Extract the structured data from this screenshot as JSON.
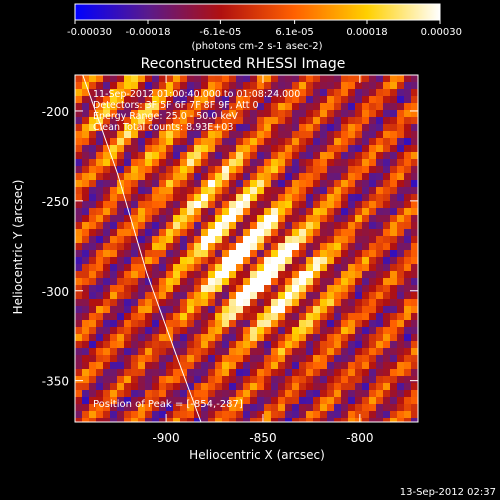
{
  "chart_data": {
    "type": "heatmap",
    "title": "Reconstructed RHESSI Image",
    "xlabel": "Heliocentric X (arcsec)",
    "ylabel": "Heliocentric Y (arcsec)",
    "xlim": [
      -947,
      -770
    ],
    "ylim": [
      -373,
      -180
    ],
    "xticks": [
      -900,
      -850,
      -800
    ],
    "xtick_labels": [
      "-900",
      "-850",
      "-800"
    ],
    "yticks": [
      -200,
      -250,
      -300,
      -350
    ],
    "ytick_labels": [
      "-200",
      "-250",
      "-300",
      "-350"
    ],
    "colorbar": {
      "range": [
        -0.0003,
        0.0003
      ],
      "ticks": [
        -0.0003,
        -0.00018,
        -6.1e-05,
        6.1e-05,
        0.00018,
        0.0003
      ],
      "tick_labels": [
        "-0.00030",
        "-0.00018",
        "-6.1e-05",
        "6.1e-05",
        "0.00018",
        "0.00030"
      ],
      "units_text": "(photons cm-2 s-1 asec-2)",
      "colors": [
        "#0000ff",
        "#5a1a8c",
        "#b01010",
        "#ff6000",
        "#ffd000",
        "#ffffff"
      ]
    },
    "annotations": [
      "11-Sep-2012 01:00:40.000 to 01:08:24.000",
      "Detectors: 3F 5F 6F 7F 8F 9F, Att 0",
      "Energy Range: 25.0 - 50.0 keV",
      "Clean     Total counts: 8.93E+03"
    ],
    "peak_label": "Position of Peak = [-854,-287]",
    "peak_position": [
      -854,
      -287
    ],
    "limb_curve": [
      [
        -943,
        -180
      ],
      [
        -925,
        -235
      ],
      [
        -910,
        -290
      ],
      [
        -895,
        -335
      ],
      [
        -882,
        -373
      ]
    ],
    "hotspots": [
      {
        "x": -862,
        "y": -285,
        "amplitude": 1.0
      },
      {
        "x": -838,
        "y": -290,
        "amplitude": 0.85
      },
      {
        "x": -875,
        "y": -245,
        "amplitude": 0.6
      },
      {
        "x": -920,
        "y": -200,
        "amplitude": 0.5
      }
    ],
    "grid": false
  },
  "footer": {
    "timestamp": "13-Sep-2012 02:37"
  },
  "style": {
    "background": "#000000",
    "foreground": "#ffffff",
    "limb_color": "#ffffff"
  }
}
